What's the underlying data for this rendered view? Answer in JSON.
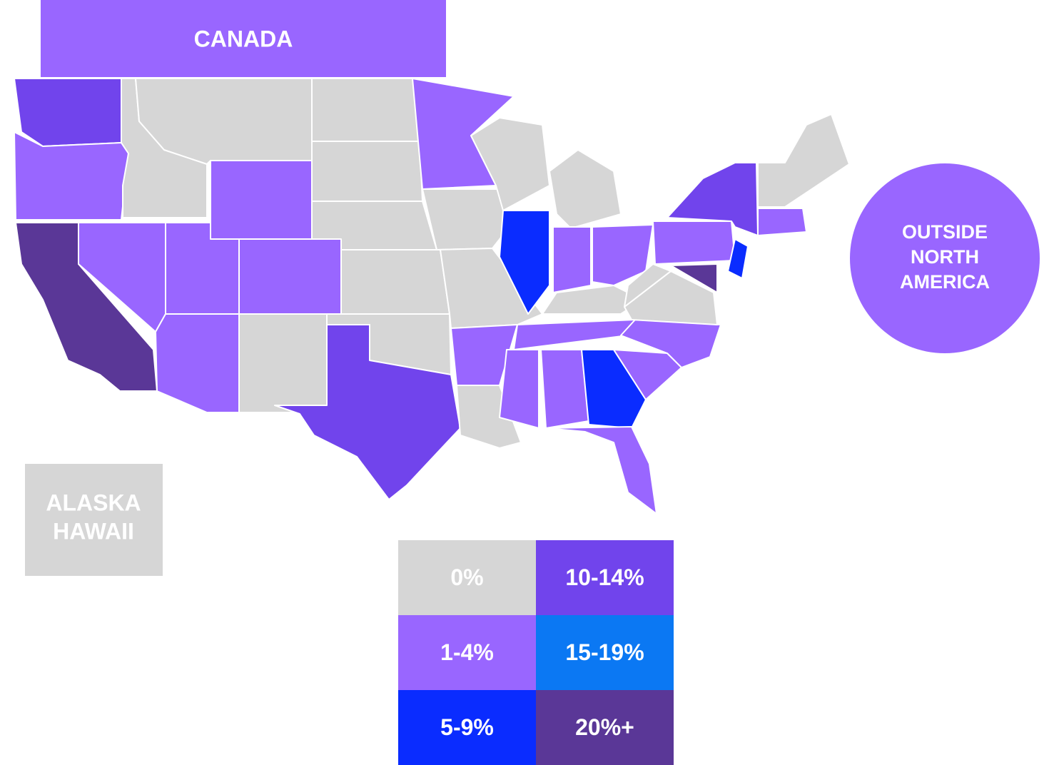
{
  "labels": {
    "canada": "CANADA",
    "outside_north_america": [
      "OUTSIDE",
      "NORTH",
      "AMERICA"
    ],
    "alaska_hawaii": [
      "ALASKA",
      "HAWAII"
    ]
  },
  "legend": [
    {
      "label": "0%",
      "color": "#d6d6d6"
    },
    {
      "label": "1-4%",
      "color": "#9966ff"
    },
    {
      "label": "5-9%",
      "color": "#0a2cff"
    },
    {
      "label": "10-14%",
      "color": "#7144ec"
    },
    {
      "label": "15-19%",
      "color": "#0b78f3"
    },
    {
      "label": "20%+",
      "color": "#5a3797"
    }
  ]
}
